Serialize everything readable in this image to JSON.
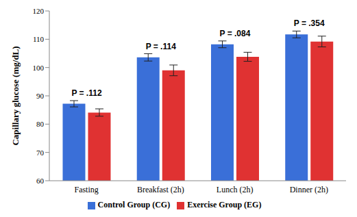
{
  "chart_data": {
    "type": "bar",
    "categories": [
      "Fasting",
      "Breakfast (2h)",
      "Lunch (2h)",
      "Dinner (2h)"
    ],
    "series": [
      {
        "name": "Control Group (CG)",
        "color": "#3a6fd8",
        "values": [
          87.2,
          103.6,
          108.2,
          111.7
        ],
        "errors": [
          1.1,
          1.3,
          1.2,
          1.2
        ]
      },
      {
        "name": "Exercise Group (EG)",
        "color": "#e03232",
        "values": [
          84.1,
          99.0,
          103.8,
          109.2
        ],
        "errors": [
          1.3,
          1.9,
          1.6,
          1.9
        ]
      }
    ],
    "annotations": [
      "P = .112",
      "P = .114",
      "P = .084",
      "P = .354"
    ],
    "y_label": "Capillary glucose (mg/dL)",
    "ylim": [
      60,
      120
    ],
    "yticks": [
      60,
      70,
      80,
      90,
      100,
      110,
      120
    ],
    "grid": false,
    "legend": "bottom"
  }
}
